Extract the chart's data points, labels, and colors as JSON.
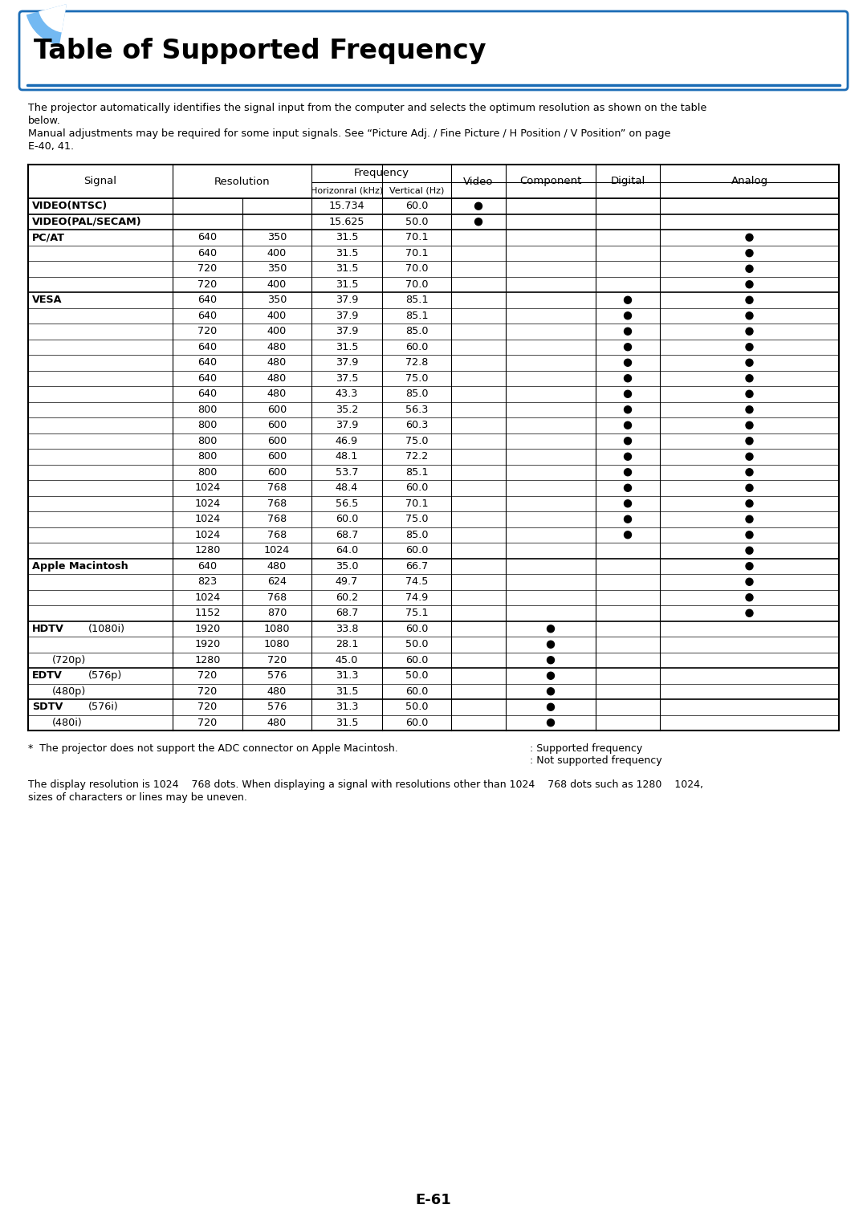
{
  "title": "Table of Supported Frequency",
  "intro_line1": "The projector automatically identifies the signal input from the computer and selects the optimum resolution as shown on the table",
  "intro_line2": "below.",
  "intro_line3": "Manual adjustments may be required for some input signals. See “Picture Adj. / Fine Picture / H Position / V Position” on page",
  "intro_line4": "E-40, 41.",
  "footer_note": "*  The projector does not support the ADC connector on Apple Macintosh.",
  "supported_label": ": Supported frequency",
  "not_supported_label": ": Not supported frequency",
  "bottom_note1": "The display resolution is 1024    768 dots. When displaying a signal with resolutions other than 1024    768 dots such as 1280    1024,",
  "bottom_note2": "sizes of characters or lines may be uneven.",
  "page_number": "E-61",
  "rows": [
    {
      "signal": "VIDEO(NTSC)",
      "sig_bold": true,
      "sig_indent": false,
      "sig2": "",
      "res1": "",
      "res2": "",
      "hz": "15.734",
      "vhz": "60.0",
      "video": true,
      "component": false,
      "digital": false,
      "analog": false
    },
    {
      "signal": "VIDEO(PAL/SECAM)",
      "sig_bold": true,
      "sig_indent": false,
      "sig2": "",
      "res1": "",
      "res2": "",
      "hz": "15.625",
      "vhz": "50.0",
      "video": true,
      "component": false,
      "digital": false,
      "analog": false
    },
    {
      "signal": "PC/AT",
      "sig_bold": true,
      "sig_indent": false,
      "sig2": "",
      "res1": "640",
      "res2": "350",
      "hz": "31.5",
      "vhz": "70.1",
      "video": false,
      "component": false,
      "digital": false,
      "analog": true
    },
    {
      "signal": "",
      "sig_bold": false,
      "sig_indent": false,
      "sig2": "",
      "res1": "640",
      "res2": "400",
      "hz": "31.5",
      "vhz": "70.1",
      "video": false,
      "component": false,
      "digital": false,
      "analog": true
    },
    {
      "signal": "",
      "sig_bold": false,
      "sig_indent": false,
      "sig2": "",
      "res1": "720",
      "res2": "350",
      "hz": "31.5",
      "vhz": "70.0",
      "video": false,
      "component": false,
      "digital": false,
      "analog": true
    },
    {
      "signal": "",
      "sig_bold": false,
      "sig_indent": false,
      "sig2": "",
      "res1": "720",
      "res2": "400",
      "hz": "31.5",
      "vhz": "70.0",
      "video": false,
      "component": false,
      "digital": false,
      "analog": true
    },
    {
      "signal": "VESA",
      "sig_bold": true,
      "sig_indent": false,
      "sig2": "",
      "res1": "640",
      "res2": "350",
      "hz": "37.9",
      "vhz": "85.1",
      "video": false,
      "component": false,
      "digital": true,
      "analog": true
    },
    {
      "signal": "",
      "sig_bold": false,
      "sig_indent": false,
      "sig2": "",
      "res1": "640",
      "res2": "400",
      "hz": "37.9",
      "vhz": "85.1",
      "video": false,
      "component": false,
      "digital": true,
      "analog": true
    },
    {
      "signal": "",
      "sig_bold": false,
      "sig_indent": false,
      "sig2": "",
      "res1": "720",
      "res2": "400",
      "hz": "37.9",
      "vhz": "85.0",
      "video": false,
      "component": false,
      "digital": true,
      "analog": true
    },
    {
      "signal": "",
      "sig_bold": false,
      "sig_indent": false,
      "sig2": "",
      "res1": "640",
      "res2": "480",
      "hz": "31.5",
      "vhz": "60.0",
      "video": false,
      "component": false,
      "digital": true,
      "analog": true
    },
    {
      "signal": "",
      "sig_bold": false,
      "sig_indent": false,
      "sig2": "",
      "res1": "640",
      "res2": "480",
      "hz": "37.9",
      "vhz": "72.8",
      "video": false,
      "component": false,
      "digital": true,
      "analog": true
    },
    {
      "signal": "",
      "sig_bold": false,
      "sig_indent": false,
      "sig2": "",
      "res1": "640",
      "res2": "480",
      "hz": "37.5",
      "vhz": "75.0",
      "video": false,
      "component": false,
      "digital": true,
      "analog": true
    },
    {
      "signal": "",
      "sig_bold": false,
      "sig_indent": false,
      "sig2": "",
      "res1": "640",
      "res2": "480",
      "hz": "43.3",
      "vhz": "85.0",
      "video": false,
      "component": false,
      "digital": true,
      "analog": true
    },
    {
      "signal": "",
      "sig_bold": false,
      "sig_indent": false,
      "sig2": "",
      "res1": "800",
      "res2": "600",
      "hz": "35.2",
      "vhz": "56.3",
      "video": false,
      "component": false,
      "digital": true,
      "analog": true
    },
    {
      "signal": "",
      "sig_bold": false,
      "sig_indent": false,
      "sig2": "",
      "res1": "800",
      "res2": "600",
      "hz": "37.9",
      "vhz": "60.3",
      "video": false,
      "component": false,
      "digital": true,
      "analog": true
    },
    {
      "signal": "",
      "sig_bold": false,
      "sig_indent": false,
      "sig2": "",
      "res1": "800",
      "res2": "600",
      "hz": "46.9",
      "vhz": "75.0",
      "video": false,
      "component": false,
      "digital": true,
      "analog": true
    },
    {
      "signal": "",
      "sig_bold": false,
      "sig_indent": false,
      "sig2": "",
      "res1": "800",
      "res2": "600",
      "hz": "48.1",
      "vhz": "72.2",
      "video": false,
      "component": false,
      "digital": true,
      "analog": true
    },
    {
      "signal": "",
      "sig_bold": false,
      "sig_indent": false,
      "sig2": "",
      "res1": "800",
      "res2": "600",
      "hz": "53.7",
      "vhz": "85.1",
      "video": false,
      "component": false,
      "digital": true,
      "analog": true
    },
    {
      "signal": "",
      "sig_bold": false,
      "sig_indent": false,
      "sig2": "",
      "res1": "1024",
      "res2": "768",
      "hz": "48.4",
      "vhz": "60.0",
      "video": false,
      "component": false,
      "digital": true,
      "analog": true
    },
    {
      "signal": "",
      "sig_bold": false,
      "sig_indent": false,
      "sig2": "",
      "res1": "1024",
      "res2": "768",
      "hz": "56.5",
      "vhz": "70.1",
      "video": false,
      "component": false,
      "digital": true,
      "analog": true
    },
    {
      "signal": "",
      "sig_bold": false,
      "sig_indent": false,
      "sig2": "",
      "res1": "1024",
      "res2": "768",
      "hz": "60.0",
      "vhz": "75.0",
      "video": false,
      "component": false,
      "digital": true,
      "analog": true
    },
    {
      "signal": "",
      "sig_bold": false,
      "sig_indent": false,
      "sig2": "",
      "res1": "1024",
      "res2": "768",
      "hz": "68.7",
      "vhz": "85.0",
      "video": false,
      "component": false,
      "digital": true,
      "analog": true
    },
    {
      "signal": "",
      "sig_bold": false,
      "sig_indent": false,
      "sig2": "",
      "res1": "1280",
      "res2": "1024",
      "hz": "64.0",
      "vhz": "60.0",
      "video": false,
      "component": false,
      "digital": false,
      "analog": true
    },
    {
      "signal": "Apple Macintosh",
      "sig_bold": true,
      "sig_indent": false,
      "sig2": "",
      "res1": "640",
      "res2": "480",
      "hz": "35.0",
      "vhz": "66.7",
      "video": false,
      "component": false,
      "digital": false,
      "analog": true
    },
    {
      "signal": "",
      "sig_bold": false,
      "sig_indent": false,
      "sig2": "",
      "res1": "823",
      "res2": "624",
      "hz": "49.7",
      "vhz": "74.5",
      "video": false,
      "component": false,
      "digital": false,
      "analog": true
    },
    {
      "signal": "",
      "sig_bold": false,
      "sig_indent": false,
      "sig2": "",
      "res1": "1024",
      "res2": "768",
      "hz": "60.2",
      "vhz": "74.9",
      "video": false,
      "component": false,
      "digital": false,
      "analog": true
    },
    {
      "signal": "",
      "sig_bold": false,
      "sig_indent": false,
      "sig2": "",
      "res1": "1152",
      "res2": "870",
      "hz": "68.7",
      "vhz": "75.1",
      "video": false,
      "component": false,
      "digital": false,
      "analog": true
    },
    {
      "signal": "HDTV",
      "sig_bold": true,
      "sig_indent": false,
      "sig2": "(1080i)",
      "res1": "1920",
      "res2": "1080",
      "hz": "33.8",
      "vhz": "60.0",
      "video": false,
      "component": true,
      "digital": false,
      "analog": false
    },
    {
      "signal": "",
      "sig_bold": false,
      "sig_indent": false,
      "sig2": "",
      "res1": "1920",
      "res2": "1080",
      "hz": "28.1",
      "vhz": "50.0",
      "video": false,
      "component": true,
      "digital": false,
      "analog": false
    },
    {
      "signal": "",
      "sig_bold": false,
      "sig_indent": true,
      "sig2": "(720p)",
      "res1": "1280",
      "res2": "720",
      "hz": "45.0",
      "vhz": "60.0",
      "video": false,
      "component": true,
      "digital": false,
      "analog": false
    },
    {
      "signal": "EDTV",
      "sig_bold": true,
      "sig_indent": false,
      "sig2": "(576p)",
      "res1": "720",
      "res2": "576",
      "hz": "31.3",
      "vhz": "50.0",
      "video": false,
      "component": true,
      "digital": false,
      "analog": false
    },
    {
      "signal": "",
      "sig_bold": false,
      "sig_indent": true,
      "sig2": "(480p)",
      "res1": "720",
      "res2": "480",
      "hz": "31.5",
      "vhz": "60.0",
      "video": false,
      "component": true,
      "digital": false,
      "analog": false
    },
    {
      "signal": "SDTV",
      "sig_bold": true,
      "sig_indent": false,
      "sig2": "(576i)",
      "res1": "720",
      "res2": "576",
      "hz": "31.3",
      "vhz": "50.0",
      "video": false,
      "component": true,
      "digital": false,
      "analog": false
    },
    {
      "signal": "",
      "sig_bold": false,
      "sig_indent": true,
      "sig2": "(480i)",
      "res1": "720",
      "res2": "480",
      "hz": "31.5",
      "vhz": "60.0",
      "video": false,
      "component": true,
      "digital": false,
      "analog": false
    }
  ],
  "bg_color": "#ffffff",
  "text_color": "#000000",
  "blue_accent": "#1a6bb5"
}
